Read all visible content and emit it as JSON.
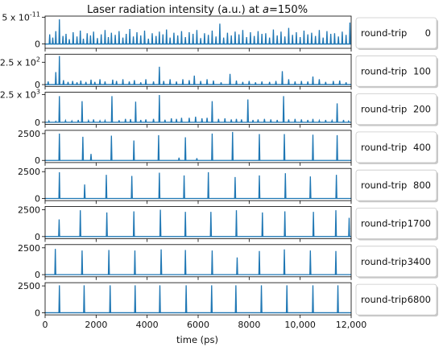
{
  "chart_data": {
    "type": "line",
    "title_prefix": "Laser radiation intensity (a.u.) at ",
    "title_var": "a",
    "title_suffix": "=150%",
    "xlabel": "time (ps)",
    "xlim": [
      0,
      12000
    ],
    "xticks": [
      0,
      2000,
      4000,
      6000,
      8000,
      10000,
      12000
    ],
    "xtick_labels": [
      "0",
      "2000",
      "4000",
      "6000",
      "8000",
      "10,000",
      "12,000"
    ],
    "line_color": "#1f77b4",
    "legend_prefix": "round-trip",
    "panels": [
      {
        "round_trip": "0",
        "ylim": [
          -8e-12,
          5.2e-11
        ],
        "yticks": [
          {
            "value": 5e-11,
            "label": "5 x 10",
            "exp": "-11"
          },
          {
            "value": 0,
            "label": "0",
            "exp": ""
          }
        ],
        "baseline": 0.0,
        "peaks": [
          [
            180,
            1.8e-11
          ],
          [
            300,
            1.2e-11
          ],
          [
            420,
            2.4e-11
          ],
          [
            560,
            4.6e-11
          ],
          [
            700,
            1.5e-11
          ],
          [
            820,
            1.9e-11
          ],
          [
            950,
            9e-12
          ],
          [
            1100,
            2.2e-11
          ],
          [
            1250,
            1.4e-11
          ],
          [
            1380,
            2.5e-11
          ],
          [
            1500,
            1e-11
          ],
          [
            1650,
            2e-11
          ],
          [
            1780,
            1.6e-11
          ],
          [
            1900,
            2.3e-11
          ],
          [
            2050,
            1.1e-11
          ],
          [
            2200,
            1.8e-11
          ],
          [
            2350,
            2.6e-11
          ],
          [
            2480,
            1.3e-11
          ],
          [
            2600,
            2.1e-11
          ],
          [
            2750,
            1.7e-11
          ],
          [
            2900,
            2.4e-11
          ],
          [
            3050,
            1.2e-11
          ],
          [
            3180,
            1.9e-11
          ],
          [
            3320,
            2.8e-11
          ],
          [
            3460,
            1.4e-11
          ],
          [
            3600,
            2.2e-11
          ],
          [
            3750,
            1.6e-11
          ],
          [
            3900,
            2.5e-11
          ],
          [
            4050,
            1e-11
          ],
          [
            4200,
            2e-11
          ],
          [
            4350,
            1.5e-11
          ],
          [
            4480,
            2.3e-11
          ],
          [
            4620,
            1.8e-11
          ],
          [
            4760,
            2.7e-11
          ],
          [
            4900,
            1.2e-11
          ],
          [
            5050,
            2.1e-11
          ],
          [
            5200,
            1.6e-11
          ],
          [
            5350,
            2.4e-11
          ],
          [
            5500,
            1.3e-11
          ],
          [
            5650,
            2.2e-11
          ],
          [
            5800,
            1.9e-11
          ],
          [
            5950,
            2.6e-11
          ],
          [
            6100,
            1.1e-11
          ],
          [
            6250,
            2e-11
          ],
          [
            6400,
            1.7e-11
          ],
          [
            6550,
            2.5e-11
          ],
          [
            6700,
            1.4e-11
          ],
          [
            6850,
            3.8e-11
          ],
          [
            7000,
            1.2e-11
          ],
          [
            7150,
            2.1e-11
          ],
          [
            7300,
            1.6e-11
          ],
          [
            7450,
            2.3e-11
          ],
          [
            7600,
            1.8e-11
          ],
          [
            7750,
            2.6e-11
          ],
          [
            7900,
            1.3e-11
          ],
          [
            8050,
            2.2e-11
          ],
          [
            8200,
            1.5e-11
          ],
          [
            8350,
            2.4e-11
          ],
          [
            8500,
            1.9e-11
          ],
          [
            8650,
            2e-11
          ],
          [
            8800,
            1.2e-11
          ],
          [
            8950,
            2.7e-11
          ],
          [
            9100,
            1.6e-11
          ],
          [
            9250,
            2.3e-11
          ],
          [
            9400,
            1.4e-11
          ],
          [
            9550,
            3e-11
          ],
          [
            9700,
            1.7e-11
          ],
          [
            9850,
            2.2e-11
          ],
          [
            10000,
            1.3e-11
          ],
          [
            10150,
            2.5e-11
          ],
          [
            10300,
            1.8e-11
          ],
          [
            10450,
            2.1e-11
          ],
          [
            10600,
            1.5e-11
          ],
          [
            10750,
            2.6e-11
          ],
          [
            10900,
            1.2e-11
          ],
          [
            11050,
            2.4e-11
          ],
          [
            11200,
            1.9e-11
          ],
          [
            11350,
            2e-11
          ],
          [
            11500,
            1.4e-11
          ],
          [
            11650,
            2.3e-11
          ],
          [
            11800,
            1.7e-11
          ],
          [
            11950,
            4e-11
          ]
        ]
      },
      {
        "round_trip": "100",
        "ylim": [
          -20,
          340
        ],
        "yticks": [
          {
            "value": 250,
            "label": "2.5 x 10",
            "exp": "2"
          },
          {
            "value": 0,
            "label": "0",
            "exp": ""
          }
        ],
        "baseline": 0,
        "peaks": [
          [
            120,
            35
          ],
          [
            420,
            140
          ],
          [
            560,
            320
          ],
          [
            720,
            50
          ],
          [
            900,
            30
          ],
          [
            1080,
            40
          ],
          [
            1250,
            25
          ],
          [
            1400,
            45
          ],
          [
            1600,
            30
          ],
          [
            1800,
            55
          ],
          [
            1950,
            30
          ],
          [
            2150,
            60
          ],
          [
            2350,
            35
          ],
          [
            2650,
            55
          ],
          [
            2800,
            40
          ],
          [
            3050,
            60
          ],
          [
            3300,
            35
          ],
          [
            3500,
            50
          ],
          [
            3750,
            25
          ],
          [
            3950,
            60
          ],
          [
            4250,
            35
          ],
          [
            4480,
            200
          ],
          [
            4650,
            40
          ],
          [
            4900,
            60
          ],
          [
            5150,
            35
          ],
          [
            5400,
            60
          ],
          [
            5650,
            50
          ],
          [
            5850,
            100
          ],
          [
            6100,
            40
          ],
          [
            6350,
            60
          ],
          [
            6600,
            45
          ],
          [
            6900,
            25
          ],
          [
            7250,
            120
          ],
          [
            7500,
            45
          ],
          [
            7750,
            30
          ],
          [
            8000,
            40
          ],
          [
            8250,
            25
          ],
          [
            8500,
            35
          ],
          [
            8800,
            30
          ],
          [
            9050,
            40
          ],
          [
            9300,
            150
          ],
          [
            9550,
            60
          ],
          [
            9800,
            35
          ],
          [
            10050,
            40
          ],
          [
            10300,
            35
          ],
          [
            10500,
            90
          ],
          [
            10750,
            60
          ],
          [
            11000,
            30
          ],
          [
            11300,
            40
          ],
          [
            11550,
            45
          ],
          [
            11800,
            25
          ]
        ]
      },
      {
        "round_trip": "200",
        "ylim": [
          -200,
          2700
        ],
        "yticks": [
          {
            "value": 2500,
            "label": "2.5 x 10",
            "exp": "3"
          },
          {
            "value": 0,
            "label": "0",
            "exp": ""
          }
        ],
        "baseline": 0,
        "peaks": [
          [
            150,
            120
          ],
          [
            420,
            80
          ],
          [
            560,
            2350
          ],
          [
            800,
            150
          ],
          [
            1050,
            120
          ],
          [
            1300,
            200
          ],
          [
            1450,
            1900
          ],
          [
            1700,
            150
          ],
          [
            1900,
            250
          ],
          [
            2150,
            130
          ],
          [
            2350,
            150
          ],
          [
            2620,
            2350
          ],
          [
            2900,
            180
          ],
          [
            3150,
            300
          ],
          [
            3350,
            280
          ],
          [
            3550,
            1850
          ],
          [
            3750,
            200
          ],
          [
            3950,
            250
          ],
          [
            4250,
            300
          ],
          [
            4480,
            2450
          ],
          [
            4700,
            220
          ],
          [
            4950,
            350
          ],
          [
            5150,
            300
          ],
          [
            5350,
            400
          ],
          [
            5650,
            400
          ],
          [
            5900,
            500
          ],
          [
            6150,
            350
          ],
          [
            6350,
            400
          ],
          [
            6550,
            1900
          ],
          [
            6800,
            300
          ],
          [
            7050,
            350
          ],
          [
            7300,
            250
          ],
          [
            7500,
            300
          ],
          [
            7700,
            250
          ],
          [
            7950,
            2050
          ],
          [
            8150,
            200
          ],
          [
            8350,
            250
          ],
          [
            8600,
            300
          ],
          [
            8850,
            250
          ],
          [
            9100,
            200
          ],
          [
            9350,
            2350
          ],
          [
            9550,
            250
          ],
          [
            9800,
            300
          ],
          [
            10050,
            250
          ],
          [
            10300,
            200
          ],
          [
            10500,
            300
          ],
          [
            10750,
            150
          ],
          [
            11000,
            200
          ],
          [
            11250,
            150
          ],
          [
            11450,
            1700
          ],
          [
            11700,
            200
          ],
          [
            11900,
            100
          ]
        ]
      },
      {
        "round_trip": "400",
        "ylim": [
          -200,
          2800
        ],
        "yticks": [
          {
            "value": 2500,
            "label": "2500",
            "exp": ""
          },
          {
            "value": 0,
            "label": "0",
            "exp": ""
          }
        ],
        "baseline": 0,
        "peaks": [
          [
            560,
            2500
          ],
          [
            1480,
            2200
          ],
          [
            1800,
            600
          ],
          [
            2600,
            2300
          ],
          [
            3480,
            1850
          ],
          [
            4450,
            2350
          ],
          [
            5250,
            250
          ],
          [
            5500,
            2150
          ],
          [
            5950,
            200
          ],
          [
            6550,
            2500
          ],
          [
            7350,
            2650
          ],
          [
            8400,
            2450
          ],
          [
            9380,
            2450
          ],
          [
            10500,
            2400
          ],
          [
            11450,
            2350
          ]
        ]
      },
      {
        "round_trip": "800",
        "ylim": [
          -200,
          2800
        ],
        "yticks": [
          {
            "value": 2500,
            "label": "2500",
            "exp": ""
          },
          {
            "value": 0,
            "label": "0",
            "exp": ""
          }
        ],
        "baseline": 0,
        "peaks": [
          [
            560,
            2450
          ],
          [
            1550,
            1300
          ],
          [
            2400,
            2200
          ],
          [
            3400,
            2100
          ],
          [
            4480,
            2400
          ],
          [
            5450,
            2150
          ],
          [
            6400,
            2450
          ],
          [
            7450,
            2000
          ],
          [
            8400,
            2150
          ],
          [
            9420,
            2350
          ],
          [
            10400,
            2050
          ],
          [
            11420,
            2200
          ]
        ]
      },
      {
        "round_trip": "1700",
        "ylim": [
          -200,
          2800
        ],
        "yticks": [
          {
            "value": 2500,
            "label": "2500",
            "exp": ""
          },
          {
            "value": 0,
            "label": "0",
            "exp": ""
          }
        ],
        "baseline": 0,
        "peaks": [
          [
            550,
            1600
          ],
          [
            1380,
            2450
          ],
          [
            2420,
            2250
          ],
          [
            3480,
            2350
          ],
          [
            4520,
            2500
          ],
          [
            5500,
            2300
          ],
          [
            6500,
            2300
          ],
          [
            7500,
            2450
          ],
          [
            8520,
            2250
          ],
          [
            9400,
            2350
          ],
          [
            10520,
            2300
          ],
          [
            11400,
            2450
          ],
          [
            11920,
            1750
          ]
        ]
      },
      {
        "round_trip": "3400",
        "ylim": [
          -200,
          2800
        ],
        "yticks": [
          {
            "value": 2500,
            "label": "2500",
            "exp": ""
          },
          {
            "value": 0,
            "label": "0",
            "exp": ""
          }
        ],
        "baseline": 0,
        "peaks": [
          [
            400,
            2400
          ],
          [
            1450,
            2250
          ],
          [
            2500,
            2300
          ],
          [
            3520,
            2250
          ],
          [
            4550,
            2350
          ],
          [
            5500,
            2300
          ],
          [
            6550,
            2250
          ],
          [
            7530,
            1600
          ],
          [
            8400,
            2200
          ],
          [
            9380,
            2350
          ],
          [
            10400,
            2250
          ],
          [
            11400,
            2200
          ]
        ]
      },
      {
        "round_trip": "6800",
        "ylim": [
          -200,
          2800
        ],
        "yticks": [
          {
            "value": 2500,
            "label": "2500",
            "exp": ""
          },
          {
            "value": 0,
            "label": "0",
            "exp": ""
          }
        ],
        "baseline": 0,
        "peaks": [
          [
            560,
            2550
          ],
          [
            1530,
            2550
          ],
          [
            2550,
            2550
          ],
          [
            3530,
            2550
          ],
          [
            4500,
            2550
          ],
          [
            5530,
            2550
          ],
          [
            6530,
            2550
          ],
          [
            7480,
            2550
          ],
          [
            8480,
            2550
          ],
          [
            9480,
            2550
          ],
          [
            10500,
            2550
          ],
          [
            11480,
            2550
          ]
        ]
      }
    ]
  }
}
